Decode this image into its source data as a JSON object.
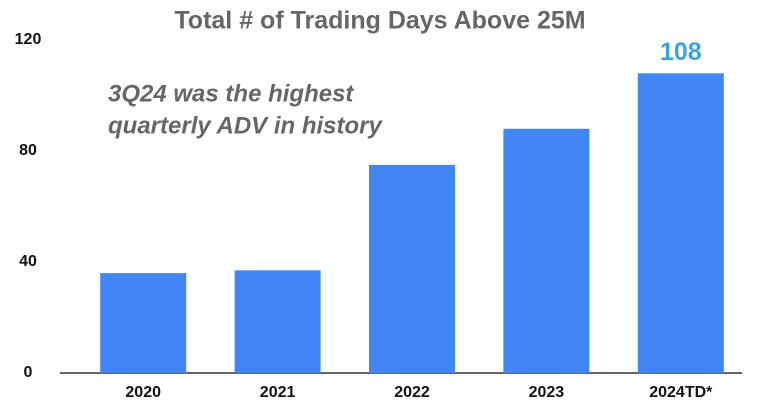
{
  "chart_data": {
    "type": "bar",
    "title": "Total # of Trading Days Above 25M",
    "annotation": [
      "3Q24 was the highest",
      "quarterly ADV in history"
    ],
    "categories": [
      "2020",
      "2021",
      "2022",
      "2023",
      "2024TD*"
    ],
    "values": [
      36,
      37,
      75,
      88,
      108
    ],
    "color": "#4285f4",
    "ylim": [
      0,
      120
    ],
    "yticks": [
      0,
      40,
      80,
      120
    ],
    "grid": false
  }
}
